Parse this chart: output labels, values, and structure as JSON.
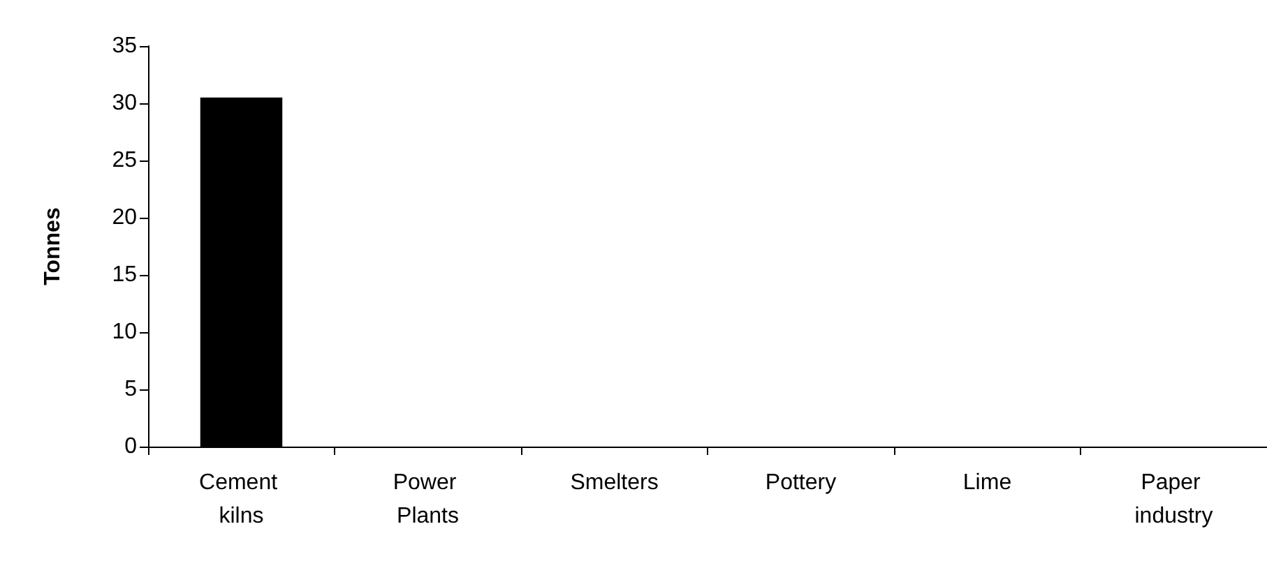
{
  "chart_data": {
    "type": "bar",
    "ylabel": "Tonnes",
    "categories": [
      "Cement kilns",
      "Power Plants",
      "Smelters",
      "Pottery",
      "Lime",
      "Paper industry"
    ],
    "values": [
      30.5,
      0,
      0,
      0,
      0,
      0
    ],
    "color": "#000000",
    "ylim": [
      0,
      35
    ],
    "yticks": [
      0,
      5,
      10,
      15,
      20,
      25,
      30,
      35
    ]
  }
}
